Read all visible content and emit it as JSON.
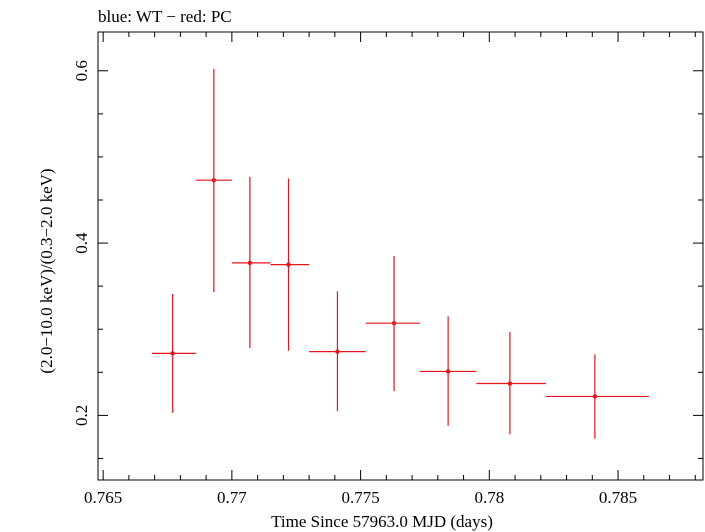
{
  "chart_data": {
    "type": "scatter",
    "title": "blue: WT − red: PC",
    "xlabel": "Time Since 57963.0 MJD (days)",
    "ylabel": "(2.0−10.0 keV)/(0.3−2.0 keV)",
    "xlim": [
      0.7648,
      0.7883
    ],
    "ylim": [
      0.125,
      0.645
    ],
    "x_ticks": [
      0.765,
      0.77,
      0.775,
      0.78,
      0.785
    ],
    "x_tick_labels": [
      "0.765",
      "0.77",
      "0.775",
      "0.78",
      "0.785"
    ],
    "y_ticks": [
      0.2,
      0.4,
      0.6
    ],
    "y_tick_labels": [
      "0.2",
      "0.4",
      "0.6"
    ],
    "grid": false,
    "series": [
      {
        "color": "#e8141b",
        "points": [
          {
            "x": 0.7677,
            "y": 0.272,
            "xerr_low": 0.7669,
            "xerr_high": 0.7686,
            "ylow": 0.203,
            "yhigh": 0.341
          },
          {
            "x": 0.7693,
            "y": 0.473,
            "xerr_low": 0.7686,
            "xerr_high": 0.77,
            "ylow": 0.343,
            "yhigh": 0.602
          },
          {
            "x": 0.7707,
            "y": 0.377,
            "xerr_low": 0.77,
            "xerr_high": 0.7715,
            "ylow": 0.278,
            "yhigh": 0.477
          },
          {
            "x": 0.7722,
            "y": 0.375,
            "xerr_low": 0.7715,
            "xerr_high": 0.773,
            "ylow": 0.275,
            "yhigh": 0.475
          },
          {
            "x": 0.7741,
            "y": 0.274,
            "xerr_low": 0.773,
            "xerr_high": 0.7752,
            "ylow": 0.205,
            "yhigh": 0.344
          },
          {
            "x": 0.7763,
            "y": 0.307,
            "xerr_low": 0.7752,
            "xerr_high": 0.7773,
            "ylow": 0.228,
            "yhigh": 0.385
          },
          {
            "x": 0.7784,
            "y": 0.251,
            "xerr_low": 0.7773,
            "xerr_high": 0.7795,
            "ylow": 0.188,
            "yhigh": 0.315
          },
          {
            "x": 0.7808,
            "y": 0.237,
            "xerr_low": 0.7795,
            "xerr_high": 0.7822,
            "ylow": 0.178,
            "yhigh": 0.297
          },
          {
            "x": 0.7841,
            "y": 0.222,
            "xerr_low": 0.7822,
            "xerr_high": 0.7862,
            "ylow": 0.173,
            "yhigh": 0.271
          }
        ]
      }
    ]
  }
}
